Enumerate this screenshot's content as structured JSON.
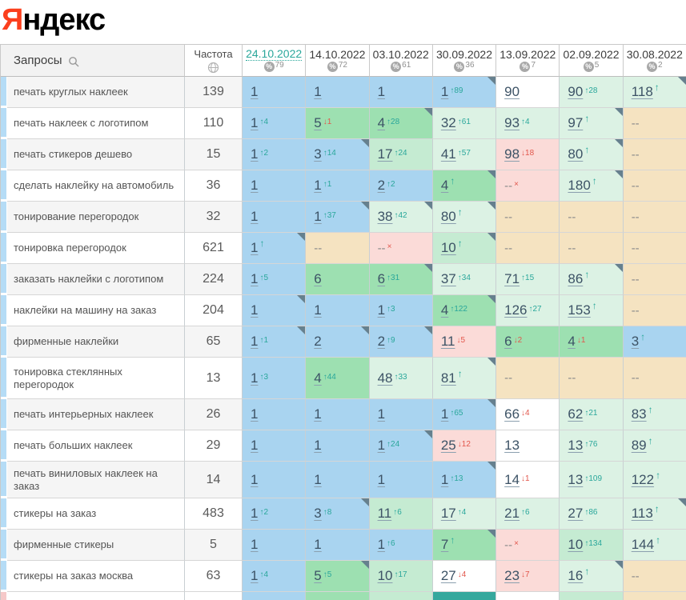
{
  "logo": {
    "red": "Я",
    "black": "ндекс"
  },
  "icons": {
    "percent_icon": "%",
    "search_icon": "magnifier",
    "globe_icon": "globe",
    "up_arrow_icon": "↑",
    "down_arrow_icon": "↓",
    "dropped_icon": "×",
    "corner_fold_icon": "fold"
  },
  "colors": {
    "accent": "#2aa79b",
    "up": "#2aa79b",
    "down": "#e2574c",
    "top3": "#a9d4f0",
    "top10": "#9de0b1",
    "top20": "#c5ebd2",
    "top100": "#dcf2e4",
    "drop": "#fbdbd8",
    "nodata": "#f5e3c1",
    "logo_red": "#fb3f1d"
  },
  "table": {
    "queries_header": "Запросы",
    "frequency_header": "Частота",
    "columns": [
      {
        "date": "24.10.2022",
        "percent": "79",
        "active": true
      },
      {
        "date": "14.10.2022",
        "percent": "72",
        "active": false
      },
      {
        "date": "03.10.2022",
        "percent": "61",
        "active": false
      },
      {
        "date": "30.09.2022",
        "percent": "36",
        "active": false
      },
      {
        "date": "13.09.2022",
        "percent": "7",
        "active": false
      },
      {
        "date": "02.09.2022",
        "percent": "5",
        "active": false
      },
      {
        "date": "30.08.2022",
        "percent": "2",
        "active": false
      }
    ],
    "rows": [
      {
        "query": "печать круглых наклеек",
        "frequency": "139",
        "cells": [
          {
            "v": "1",
            "b": "blue"
          },
          {
            "v": "1",
            "b": "blue"
          },
          {
            "v": "1",
            "b": "blue"
          },
          {
            "v": "1",
            "c": "89",
            "d": "u",
            "b": "blue",
            "k": true
          },
          {
            "v": "90",
            "b": "white"
          },
          {
            "v": "90",
            "c": "28",
            "d": "u",
            "b": "mint"
          },
          {
            "v": "118",
            "d": "u",
            "b": "mint",
            "k": true
          }
        ]
      },
      {
        "query": "печать наклеек с логотипом",
        "frequency": "110",
        "cells": [
          {
            "v": "1",
            "c": "4",
            "d": "u",
            "b": "blue"
          },
          {
            "v": "5",
            "c": "1",
            "d": "d",
            "b": "green"
          },
          {
            "v": "4",
            "c": "28",
            "d": "u",
            "b": "green",
            "k": true
          },
          {
            "v": "32",
            "c": "61",
            "d": "u",
            "b": "mint"
          },
          {
            "v": "93",
            "c": "4",
            "d": "u",
            "b": "mint"
          },
          {
            "v": "97",
            "d": "u",
            "b": "mint",
            "k": true
          },
          {
            "v": "--",
            "b": "tan"
          }
        ]
      },
      {
        "query": "печать стикеров дешево",
        "frequency": "15",
        "cells": [
          {
            "v": "1",
            "c": "2",
            "d": "u",
            "b": "blue"
          },
          {
            "v": "3",
            "c": "14",
            "d": "u",
            "b": "blue",
            "k": true
          },
          {
            "v": "17",
            "c": "24",
            "d": "u",
            "b": "lightgreen"
          },
          {
            "v": "41",
            "c": "57",
            "d": "u",
            "b": "mint"
          },
          {
            "v": "98",
            "c": "18",
            "d": "d",
            "b": "pink"
          },
          {
            "v": "80",
            "d": "u",
            "b": "mint",
            "k": true
          },
          {
            "v": "--",
            "b": "tan"
          }
        ]
      },
      {
        "query": "сделать наклейку на автомобиль",
        "frequency": "36",
        "cells": [
          {
            "v": "1",
            "b": "blue"
          },
          {
            "v": "1",
            "c": "1",
            "d": "u",
            "b": "blue"
          },
          {
            "v": "2",
            "c": "2",
            "d": "u",
            "b": "blue"
          },
          {
            "v": "4",
            "d": "u",
            "b": "green",
            "k": true
          },
          {
            "v": "--",
            "d": "x",
            "b": "pink"
          },
          {
            "v": "180",
            "d": "u",
            "b": "mint",
            "k": true
          },
          {
            "v": "--",
            "b": "tan"
          }
        ]
      },
      {
        "query": "тонирование перегородок",
        "frequency": "32",
        "cells": [
          {
            "v": "1",
            "b": "blue"
          },
          {
            "v": "1",
            "c": "37",
            "d": "u",
            "b": "blue",
            "k": true
          },
          {
            "v": "38",
            "c": "42",
            "d": "u",
            "b": "mint",
            "k": true
          },
          {
            "v": "80",
            "d": "u",
            "b": "mint",
            "k": true
          },
          {
            "v": "--",
            "b": "tan"
          },
          {
            "v": "--",
            "b": "tan"
          },
          {
            "v": "--",
            "b": "tan"
          }
        ]
      },
      {
        "query": "тонировка перегородок",
        "frequency": "621",
        "cells": [
          {
            "v": "1",
            "d": "u",
            "b": "blue",
            "k": true
          },
          {
            "v": "--",
            "b": "tan"
          },
          {
            "v": "--",
            "d": "x",
            "b": "pink"
          },
          {
            "v": "10",
            "d": "u",
            "b": "lightgreen",
            "k": true
          },
          {
            "v": "--",
            "b": "tan"
          },
          {
            "v": "--",
            "b": "tan"
          },
          {
            "v": "--",
            "b": "tan"
          }
        ]
      },
      {
        "query": "заказать наклейки с логотипом",
        "frequency": "224",
        "cells": [
          {
            "v": "1",
            "c": "5",
            "d": "u",
            "b": "blue"
          },
          {
            "v": "6",
            "b": "green"
          },
          {
            "v": "6",
            "c": "31",
            "d": "u",
            "b": "green",
            "k": true
          },
          {
            "v": "37",
            "c": "34",
            "d": "u",
            "b": "mint"
          },
          {
            "v": "71",
            "c": "15",
            "d": "u",
            "b": "mint"
          },
          {
            "v": "86",
            "d": "u",
            "b": "mint",
            "k": true
          },
          {
            "v": "--",
            "b": "tan"
          }
        ]
      },
      {
        "query": "наклейки на машину на заказ",
        "frequency": "204",
        "cells": [
          {
            "v": "1",
            "b": "blue",
            "k": true
          },
          {
            "v": "1",
            "b": "blue"
          },
          {
            "v": "1",
            "c": "3",
            "d": "u",
            "b": "blue"
          },
          {
            "v": "4",
            "c": "122",
            "d": "u",
            "b": "green",
            "k": true
          },
          {
            "v": "126",
            "c": "27",
            "d": "u",
            "b": "mint"
          },
          {
            "v": "153",
            "d": "u",
            "b": "mint"
          },
          {
            "v": "--",
            "b": "tan"
          }
        ]
      },
      {
        "query": "фирменные наклейки",
        "frequency": "65",
        "cells": [
          {
            "v": "1",
            "c": "1",
            "d": "u",
            "b": "blue",
            "k": true
          },
          {
            "v": "2",
            "b": "blue",
            "k": true
          },
          {
            "v": "2",
            "c": "9",
            "d": "u",
            "b": "blue",
            "k": true
          },
          {
            "v": "11",
            "c": "5",
            "d": "d",
            "b": "pink"
          },
          {
            "v": "6",
            "c": "2",
            "d": "d",
            "b": "green"
          },
          {
            "v": "4",
            "c": "1",
            "d": "d",
            "b": "green"
          },
          {
            "v": "3",
            "d": "u",
            "b": "blue"
          }
        ]
      },
      {
        "query": "тонировка стеклянных перегородок",
        "frequency": "13",
        "cells": [
          {
            "v": "1",
            "c": "3",
            "d": "u",
            "b": "blue"
          },
          {
            "v": "4",
            "c": "44",
            "d": "u",
            "b": "green"
          },
          {
            "v": "48",
            "c": "33",
            "d": "u",
            "b": "mint"
          },
          {
            "v": "81",
            "d": "u",
            "b": "mint",
            "k": true
          },
          {
            "v": "--",
            "b": "tan"
          },
          {
            "v": "--",
            "b": "tan"
          },
          {
            "v": "--",
            "b": "tan"
          }
        ]
      },
      {
        "query": "печать интерьерных наклеек",
        "frequency": "26",
        "cells": [
          {
            "v": "1",
            "b": "blue"
          },
          {
            "v": "1",
            "b": "blue"
          },
          {
            "v": "1",
            "b": "blue"
          },
          {
            "v": "1",
            "c": "65",
            "d": "u",
            "b": "blue",
            "k": true
          },
          {
            "v": "66",
            "c": "4",
            "d": "d",
            "b": "white"
          },
          {
            "v": "62",
            "c": "21",
            "d": "u",
            "b": "mint"
          },
          {
            "v": "83",
            "d": "u",
            "b": "mint"
          }
        ]
      },
      {
        "query": "печать больших наклеек",
        "frequency": "29",
        "cells": [
          {
            "v": "1",
            "b": "blue"
          },
          {
            "v": "1",
            "b": "blue"
          },
          {
            "v": "1",
            "c": "24",
            "d": "u",
            "b": "blue",
            "k": true
          },
          {
            "v": "25",
            "c": "12",
            "d": "d",
            "b": "pink"
          },
          {
            "v": "13",
            "b": "white"
          },
          {
            "v": "13",
            "c": "76",
            "d": "u",
            "b": "mint"
          },
          {
            "v": "89",
            "d": "u",
            "b": "mint"
          }
        ]
      },
      {
        "query": "печать виниловых наклеек на заказ",
        "frequency": "14",
        "cells": [
          {
            "v": "1",
            "b": "blue"
          },
          {
            "v": "1",
            "b": "blue"
          },
          {
            "v": "1",
            "b": "blue"
          },
          {
            "v": "1",
            "c": "13",
            "d": "u",
            "b": "blue",
            "k": true
          },
          {
            "v": "14",
            "c": "1",
            "d": "d",
            "b": "white"
          },
          {
            "v": "13",
            "c": "109",
            "d": "u",
            "b": "mint"
          },
          {
            "v": "122",
            "d": "u",
            "b": "mint"
          }
        ]
      },
      {
        "query": "стикеры на заказ",
        "frequency": "483",
        "cells": [
          {
            "v": "1",
            "c": "2",
            "d": "u",
            "b": "blue"
          },
          {
            "v": "3",
            "c": "8",
            "d": "u",
            "b": "blue",
            "k": true
          },
          {
            "v": "11",
            "c": "6",
            "d": "u",
            "b": "lightgreen"
          },
          {
            "v": "17",
            "c": "4",
            "d": "u",
            "b": "mint"
          },
          {
            "v": "21",
            "c": "6",
            "d": "u",
            "b": "mint"
          },
          {
            "v": "27",
            "c": "86",
            "d": "u",
            "b": "mint"
          },
          {
            "v": "113",
            "d": "u",
            "b": "mint",
            "k": true
          }
        ]
      },
      {
        "query": "фирменные стикеры",
        "frequency": "5",
        "cells": [
          {
            "v": "1",
            "b": "blue"
          },
          {
            "v": "1",
            "b": "blue"
          },
          {
            "v": "1",
            "c": "6",
            "d": "u",
            "b": "blue"
          },
          {
            "v": "7",
            "d": "u",
            "b": "green",
            "k": true
          },
          {
            "v": "--",
            "d": "x",
            "b": "pink"
          },
          {
            "v": "10",
            "c": "134",
            "d": "u",
            "b": "lightgreen"
          },
          {
            "v": "144",
            "d": "u",
            "b": "mint"
          }
        ]
      },
      {
        "query": "стикеры на заказ москва",
        "frequency": "63",
        "cells": [
          {
            "v": "1",
            "c": "4",
            "d": "u",
            "b": "blue"
          },
          {
            "v": "5",
            "c": "5",
            "d": "u",
            "b": "green",
            "k": true
          },
          {
            "v": "10",
            "c": "17",
            "d": "u",
            "b": "lightgreen"
          },
          {
            "v": "27",
            "c": "4",
            "d": "d",
            "b": "white"
          },
          {
            "v": "23",
            "c": "7",
            "d": "d",
            "b": "pink"
          },
          {
            "v": "16",
            "d": "u",
            "b": "mint",
            "k": true
          },
          {
            "v": "--",
            "b": "tan"
          }
        ]
      }
    ],
    "cutoff_row": {
      "strip": "pinkstrip",
      "cells": [
        "blue",
        "green",
        "lightgreen",
        "teal",
        "white",
        "lightgreen",
        "tan"
      ]
    }
  }
}
